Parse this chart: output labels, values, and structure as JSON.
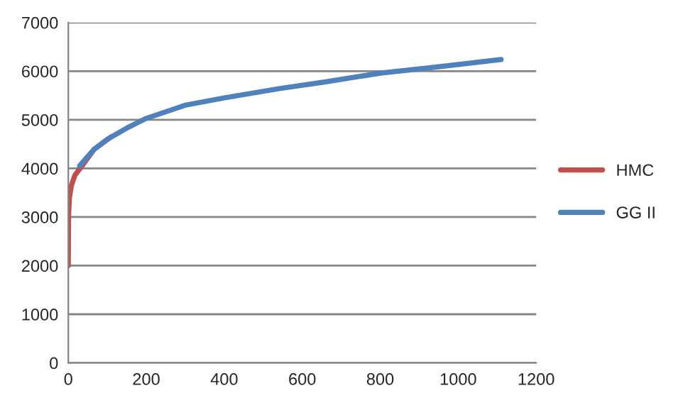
{
  "chart_data": {
    "type": "line",
    "xlim": [
      0,
      1200
    ],
    "xticks": [
      0,
      200,
      400,
      600,
      800,
      1000,
      1200
    ],
    "ylim": [
      0,
      7000
    ],
    "yticks": [
      0,
      1000,
      2000,
      3000,
      4000,
      5000,
      6000,
      7000
    ],
    "grid": "y",
    "legend": "right",
    "marker": "none",
    "line_style": "solid",
    "series": [
      {
        "name": "HMC",
        "color": "#c0504d",
        "x": [
          0,
          0.5,
          1,
          3,
          8,
          17,
          35,
          66,
          110
        ],
        "values": [
          2000,
          2800,
          3100,
          3400,
          3650,
          3860,
          4050,
          4390,
          4650
        ]
      },
      {
        "name": "GG II",
        "color": "#4f81bd",
        "x": [
          29,
          45,
          66,
          100,
          150,
          200,
          300,
          400,
          540,
          660,
          800,
          950,
          1110
        ],
        "values": [
          4050,
          4200,
          4390,
          4600,
          4830,
          5030,
          5300,
          5450,
          5640,
          5780,
          5960,
          6090,
          6240
        ]
      }
    ]
  }
}
